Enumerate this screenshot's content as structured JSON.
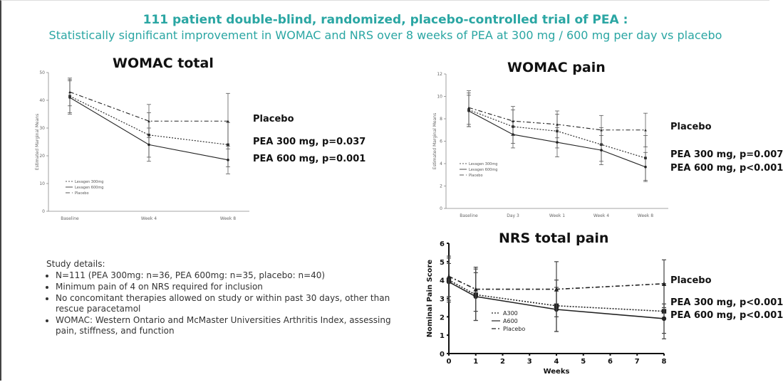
{
  "header": {
    "title": "111 patient double-blind, randomized, placebo-controlled trial of PEA :",
    "subtitle": "Statistically significant improvement in WOMAC and NRS over 8 weeks of PEA at 300 mg / 600 mg per day vs placebo"
  },
  "chart_data": [
    {
      "type": "line",
      "title": "WOMAC total",
      "ylabel": "Estimated Marginal Means",
      "xlabel": "",
      "categories": [
        "Baseline",
        "Week 4",
        "Week 8"
      ],
      "ylim": [
        0,
        50
      ],
      "yticks": [
        "0",
        "10",
        "20",
        "30",
        "40",
        "50"
      ],
      "series": [
        {
          "name": "Levagen 300mg",
          "values": [
            41.5,
            27.5,
            24.0
          ],
          "err": [
            6,
            8,
            8
          ],
          "style": "dotted"
        },
        {
          "name": "Levagen 600mg",
          "values": [
            41.0,
            24.0,
            18.5
          ],
          "err": [
            6,
            6,
            5
          ],
          "style": "solid"
        },
        {
          "name": "Placebo",
          "values": [
            43.0,
            32.5,
            32.5
          ],
          "err": [
            5,
            6,
            10
          ],
          "style": "dashdot"
        }
      ],
      "annotations": [
        "Placebo",
        "PEA 300 mg, p=0.037",
        "PEA 600 mg, p=0.001"
      ],
      "legend": "bottom-left"
    },
    {
      "type": "line",
      "title": "WOMAC pain",
      "ylabel": "Estimated Marginal Means",
      "xlabel": "",
      "categories": [
        "Baseline",
        "Day 3",
        "Week 1",
        "Week 4",
        "Week 8"
      ],
      "ylim": [
        0,
        12
      ],
      "yticks": [
        "0",
        "2",
        "4",
        "6",
        "8",
        "10",
        "12"
      ],
      "series": [
        {
          "name": "Levagen 300mg",
          "values": [
            8.8,
            7.3,
            6.9,
            5.7,
            4.5
          ],
          "err": [
            1.5,
            1.5,
            1.5,
            1.5,
            2
          ],
          "style": "dotted"
        },
        {
          "name": "Levagen 600mg",
          "values": [
            8.7,
            6.6,
            5.9,
            5.2,
            3.7
          ],
          "err": [
            1.4,
            1.2,
            1.3,
            1.3,
            1.3
          ],
          "style": "solid"
        },
        {
          "name": "Placebo",
          "values": [
            9.0,
            7.8,
            7.5,
            7.0,
            7.0
          ],
          "err": [
            1.5,
            1.3,
            1.2,
            1.3,
            1.5
          ],
          "style": "dashdot"
        }
      ],
      "annotations": [
        "Placebo",
        "PEA 300 mg, p=0.007",
        "PEA 600 mg, p<0.001"
      ],
      "legend": "left"
    },
    {
      "type": "line",
      "title": "NRS total pain",
      "ylabel": "Nominal Pain Score",
      "xlabel": "Weeks",
      "x": [
        0,
        1,
        4,
        8
      ],
      "xlim": [
        0,
        8
      ],
      "xticks": [
        "0",
        "1",
        "2",
        "3",
        "4",
        "5",
        "6",
        "7",
        "8"
      ],
      "ylim": [
        0,
        6
      ],
      "yticks": [
        "0",
        "1",
        "2",
        "3",
        "4",
        "5",
        "6"
      ],
      "series": [
        {
          "name": "A300",
          "values": [
            4.0,
            3.2,
            2.6,
            2.3
          ],
          "err": [
            1.2,
            1.4,
            1.4,
            1.5
          ],
          "style": "dotted"
        },
        {
          "name": "A600",
          "values": [
            3.9,
            3.1,
            2.4,
            1.9
          ],
          "err": [
            1.0,
            1.3,
            1.2,
            0.8
          ],
          "style": "solid"
        },
        {
          "name": "Placebo",
          "values": [
            4.2,
            3.5,
            3.5,
            3.8
          ],
          "err": [
            1.1,
            1.2,
            1.5,
            1.3
          ],
          "style": "dashdot"
        }
      ],
      "annotations": [
        "Placebo",
        "PEA 300 mg, p<0.001",
        "PEA 600 mg, p<0.001"
      ],
      "legend": "bottom-left"
    }
  ],
  "study": {
    "heading": "Study details:",
    "items": [
      "N=111 (PEA 300mg: n=36, PEA 600mg: n=35, placebo: n=40)",
      "Minimum pain of 4 on NRS required for inclusion",
      "No concomitant therapies allowed on study or within past 30 days, other than rescue paracetamol",
      "WOMAC: Western Ontario and McMaster Universities Arthritis Index, assessing pain, stiffness, and function"
    ]
  }
}
